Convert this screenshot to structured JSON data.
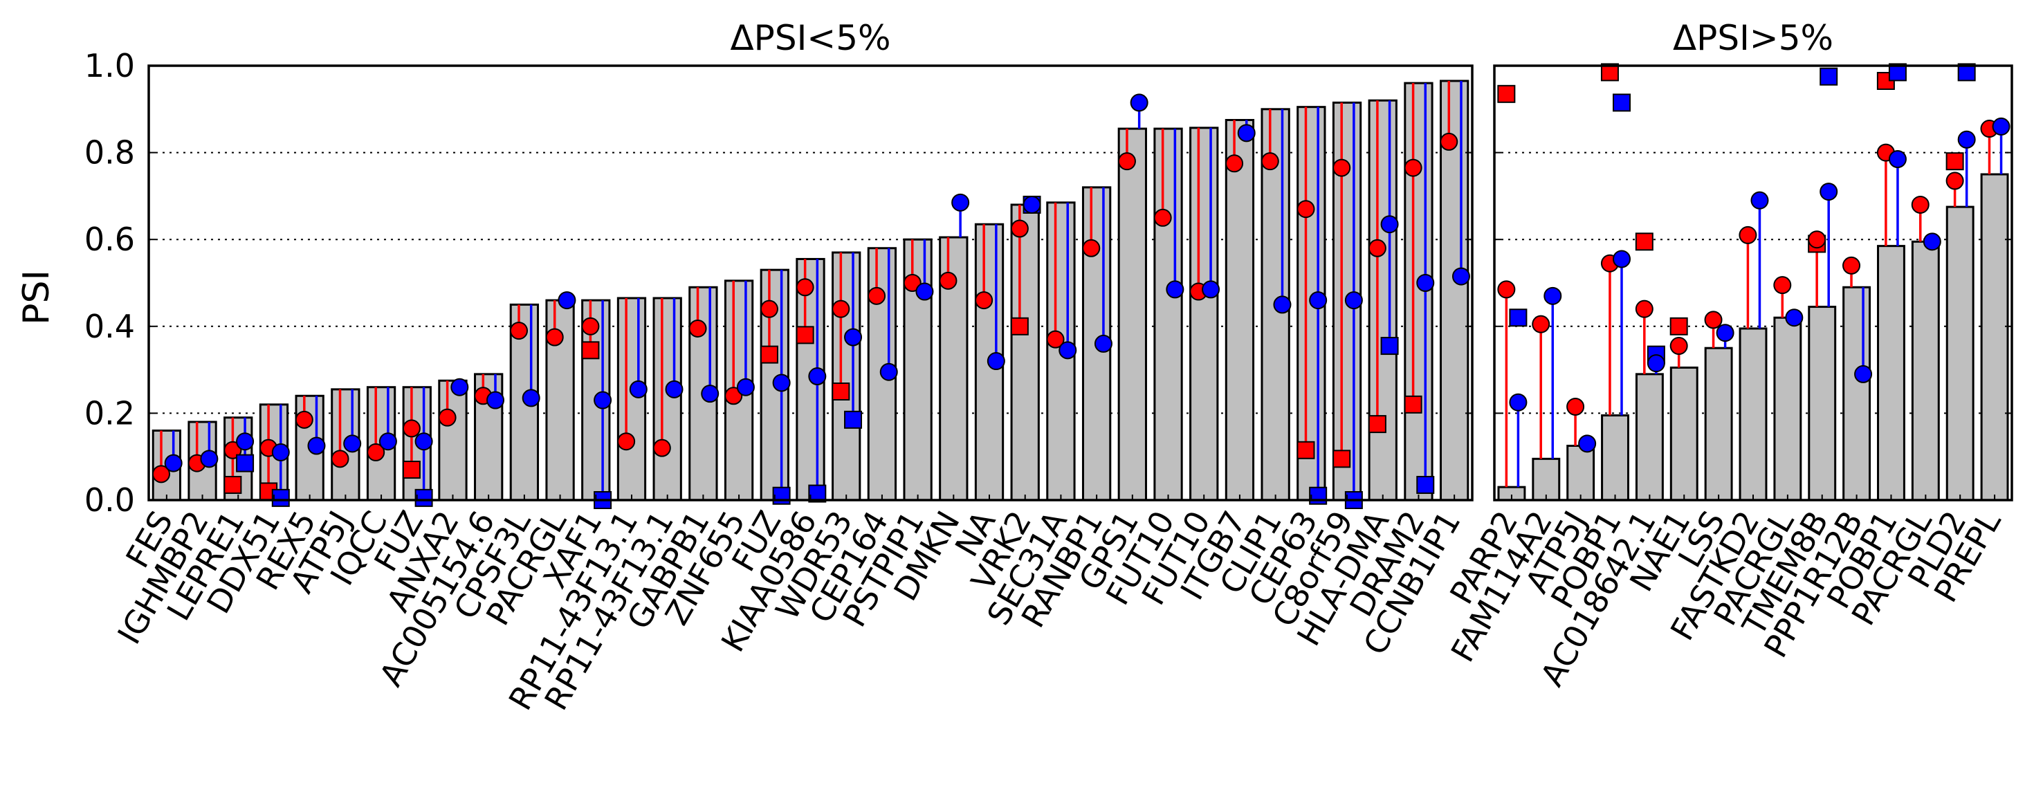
{
  "chart_data": [
    {
      "type": "bar",
      "title": "ΔPSI<5%",
      "ylabel": "PSI",
      "ylim": [
        0,
        1.0
      ],
      "yticks": [
        "0.0",
        "0.2",
        "0.4",
        "0.6",
        "0.8",
        "1.0"
      ],
      "grid": "y-dotted",
      "categories": [
        "FES",
        "IGHMBP2",
        "LEPRE1",
        "DDX51",
        "REX5",
        "ATP5J",
        "IQCC",
        "FUZ",
        "ANXA2",
        "AC005154.6",
        "CPSF3L",
        "PACRGL",
        "XAF1",
        "RP11-43F13.1",
        "RP11-43F13.1",
        "GABPB1",
        "ZNF655",
        "FUZ",
        "KIAA0586",
        "WDR53",
        "CEP164",
        "PSTPIP1",
        "DMKN",
        "NA",
        "VRK2",
        "SEC31A",
        "RANBP1",
        "GPS1",
        "FUT10",
        "FUT10",
        "ITGB7",
        "CLIP1",
        "CEP63",
        "C8orf59",
        "HLA-DMA",
        "DRAM2",
        "CCNB1IP1"
      ],
      "series": [
        {
          "values": [
            0.16,
            0.18,
            0.19,
            0.22,
            0.24,
            0.255,
            0.26,
            0.26,
            0.275,
            0.29,
            0.45,
            0.46,
            0.46,
            0.465,
            0.465,
            0.49,
            0.505,
            0.53,
            0.555,
            0.57,
            0.58,
            0.6,
            0.605,
            0.635,
            0.68,
            0.685,
            0.72,
            0.855,
            0.855,
            0.857,
            0.875,
            0.9,
            0.905,
            0.915,
            0.92,
            0.96,
            0.965
          ]
        },
        {
          "values": [
            0.06,
            0.085,
            0.115,
            0.12,
            0.185,
            0.095,
            0.11,
            0.165,
            0.19,
            0.24,
            0.39,
            0.375,
            0.4,
            0.135,
            0.12,
            0.395,
            0.24,
            0.44,
            0.49,
            0.44,
            0.47,
            0.5,
            0.505,
            0.46,
            0.625,
            0.37,
            0.58,
            0.78,
            0.65,
            0.48,
            0.775,
            0.78,
            0.67,
            0.765,
            0.58,
            0.765,
            0.825
          ]
        },
        {
          "values": [
            null,
            null,
            0.035,
            0.02,
            null,
            null,
            null,
            0.07,
            null,
            null,
            null,
            null,
            0.345,
            null,
            null,
            null,
            null,
            0.335,
            0.38,
            0.25,
            null,
            null,
            null,
            null,
            0.4,
            null,
            null,
            null,
            null,
            null,
            null,
            null,
            0.115,
            0.095,
            0.175,
            0.22,
            null
          ]
        },
        {
          "values": [
            0.085,
            0.095,
            0.135,
            0.11,
            0.125,
            0.13,
            0.135,
            0.135,
            0.26,
            0.23,
            0.235,
            0.46,
            0.23,
            0.255,
            0.255,
            0.245,
            0.26,
            0.27,
            0.285,
            0.375,
            0.295,
            0.48,
            0.685,
            0.32,
            0.68,
            0.345,
            0.36,
            0.915,
            0.485,
            0.485,
            0.845,
            0.45,
            0.46,
            0.46,
            0.635,
            0.5,
            0.515
          ]
        },
        {
          "values": [
            null,
            null,
            0.085,
            0.005,
            null,
            null,
            null,
            0.005,
            null,
            null,
            null,
            null,
            0.0,
            null,
            null,
            null,
            null,
            0.01,
            0.015,
            0.185,
            null,
            null,
            null,
            null,
            0.68,
            null,
            null,
            null,
            null,
            null,
            null,
            null,
            0.01,
            0.0,
            0.355,
            0.035,
            null
          ]
        }
      ]
    },
    {
      "type": "bar",
      "title": "ΔPSI>5%",
      "ylim": [
        0,
        1.0
      ],
      "grid": "y-dotted",
      "categories": [
        "PARP2",
        "FAM114A2",
        "ATP5J",
        "POBP1",
        "AC018642.1",
        "NAE1",
        "LSS",
        "FASTKD2",
        "PACRGL",
        "TMEM8B",
        "PPP1R12B",
        "POBP1",
        "PACRGL",
        "PLD2",
        "PREPL"
      ],
      "series": [
        {
          "values": [
            0.03,
            0.095,
            0.125,
            0.195,
            0.29,
            0.305,
            0.35,
            0.395,
            0.42,
            0.445,
            0.49,
            0.585,
            0.595,
            0.675,
            0.75
          ]
        },
        {
          "values": [
            0.485,
            0.405,
            0.215,
            0.545,
            0.44,
            0.355,
            0.415,
            0.61,
            0.495,
            0.6,
            0.54,
            0.8,
            0.68,
            0.735,
            0.855
          ]
        },
        {
          "values": [
            0.935,
            null,
            null,
            0.985,
            0.595,
            0.4,
            null,
            null,
            null,
            0.59,
            null,
            0.965,
            null,
            0.78,
            null
          ]
        },
        {
          "values": [
            0.225,
            0.47,
            0.13,
            0.555,
            0.315,
            null,
            0.385,
            0.69,
            0.42,
            0.71,
            0.29,
            0.785,
            0.595,
            0.83,
            0.86
          ]
        },
        {
          "values": [
            0.42,
            null,
            null,
            0.915,
            0.335,
            null,
            null,
            null,
            null,
            0.975,
            null,
            0.985,
            null,
            0.985,
            null
          ]
        }
      ]
    }
  ]
}
